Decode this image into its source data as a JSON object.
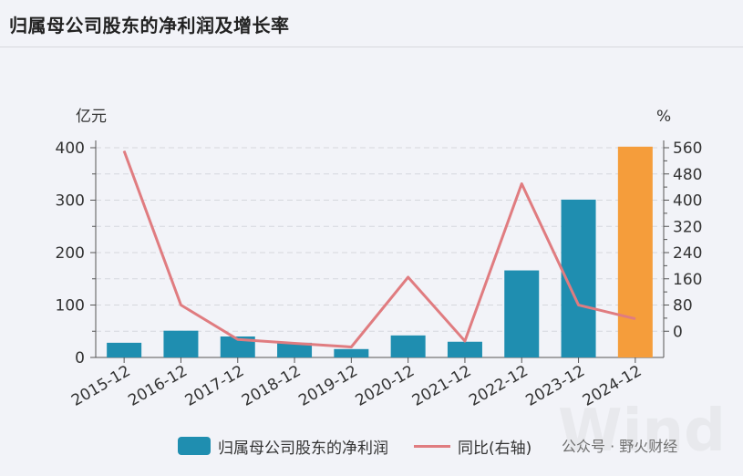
{
  "title": "归属母公司股东的净利润及增长率",
  "watermark": "公众号 · 野火财经",
  "watermark_logo": "Wind",
  "colors": {
    "bar": "#1f8eb0",
    "bar_highlight": "#f59d3b",
    "line": "#e07c80",
    "axis": "#555555",
    "grid": "#d5d7dd"
  },
  "chart_data": {
    "type": "bar",
    "categories": [
      "2015-12",
      "2016-12",
      "2017-12",
      "2018-12",
      "2019-12",
      "2020-12",
      "2021-12",
      "2022-12",
      "2023-12",
      "2024-12"
    ],
    "series": [
      {
        "name": "归属母公司股东的净利润",
        "type": "bar",
        "axis": "left",
        "values": [
          28,
          51,
          40,
          28,
          16,
          42,
          30,
          166,
          301,
          402
        ],
        "highlight_index": 9
      },
      {
        "name": "同比(右轴)",
        "type": "line",
        "axis": "right",
        "values": [
          550,
          80,
          -25,
          -37,
          -48,
          165,
          -30,
          450,
          80,
          38
        ]
      }
    ],
    "ylabel": "亿元",
    "ylabel_right": "%",
    "ylim": [
      0,
      400
    ],
    "yticks": [
      0,
      100,
      200,
      300,
      400
    ],
    "ylim_right": [
      -80,
      560
    ],
    "yticks_right": [
      0,
      80,
      160,
      240,
      320,
      400,
      480,
      560
    ],
    "grid": true,
    "legend": "bottom"
  }
}
